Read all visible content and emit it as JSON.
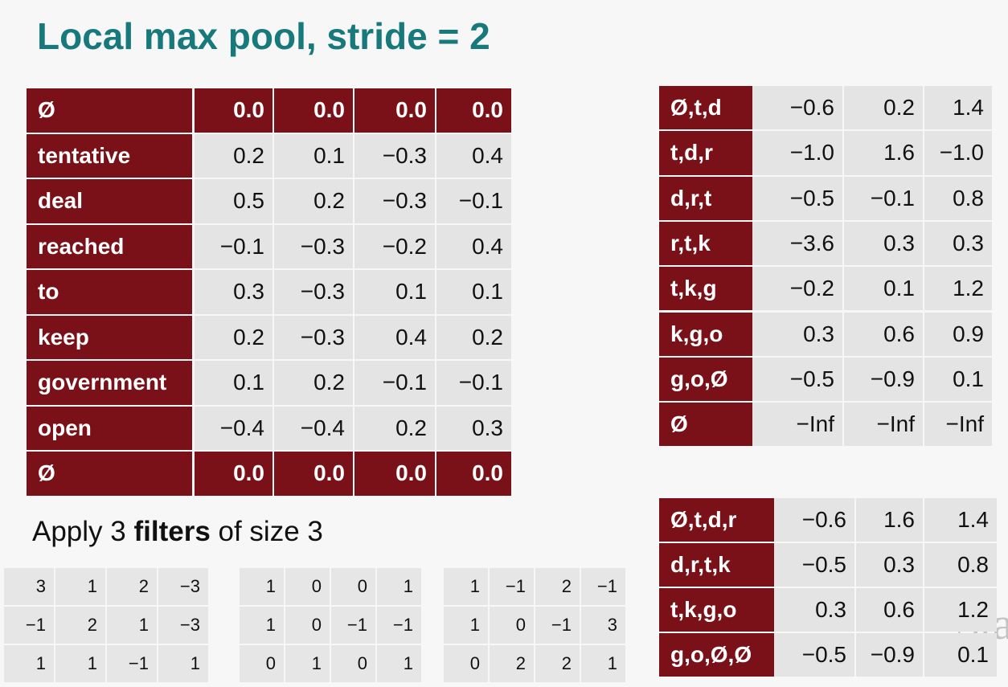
{
  "title": "Local max pool, stride = 2",
  "left_table": {
    "rows": [
      {
        "label": "Ø",
        "values": [
          "0.0",
          "0.0",
          "0.0",
          "0.0"
        ]
      },
      {
        "label": "tentative",
        "values": [
          "0.2",
          "0.1",
          "−0.3",
          "0.4"
        ]
      },
      {
        "label": "deal",
        "values": [
          "0.5",
          "0.2",
          "−0.3",
          "−0.1"
        ]
      },
      {
        "label": "reached",
        "values": [
          "−0.1",
          "−0.3",
          "−0.2",
          "0.4"
        ]
      },
      {
        "label": "to",
        "values": [
          "0.3",
          "−0.3",
          "0.1",
          "0.1"
        ]
      },
      {
        "label": "keep",
        "values": [
          "0.2",
          "−0.3",
          "0.4",
          "0.2"
        ]
      },
      {
        "label": "government",
        "values": [
          "0.1",
          "0.2",
          "−0.1",
          "−0.1"
        ]
      },
      {
        "label": "open",
        "values": [
          "−0.4",
          "−0.4",
          "0.2",
          "0.3"
        ]
      },
      {
        "label": "Ø",
        "values": [
          "0.0",
          "0.0",
          "0.0",
          "0.0"
        ]
      }
    ]
  },
  "caption": {
    "before": "Apply 3 ",
    "bold": "filters",
    "after": " of size 3"
  },
  "filters": [
    [
      [
        "3",
        "1",
        "2",
        "−3"
      ],
      [
        "−1",
        "2",
        "1",
        "−3"
      ],
      [
        "1",
        "1",
        "−1",
        "1"
      ]
    ],
    [
      [
        "1",
        "0",
        "0",
        "1"
      ],
      [
        "1",
        "0",
        "−1",
        "−1"
      ],
      [
        "0",
        "1",
        "0",
        "1"
      ]
    ],
    [
      [
        "1",
        "−1",
        "2",
        "−1"
      ],
      [
        "1",
        "0",
        "−1",
        "3"
      ],
      [
        "0",
        "2",
        "2",
        "1"
      ]
    ]
  ],
  "conv_table": {
    "rows": [
      {
        "label": "Ø,t,d",
        "values": [
          "−0.6",
          "0.2",
          "1.4"
        ]
      },
      {
        "label": "t,d,r",
        "values": [
          "−1.0",
          "1.6",
          "−1.0"
        ]
      },
      {
        "label": "d,r,t",
        "values": [
          "−0.5",
          "−0.1",
          "0.8"
        ]
      },
      {
        "label": "r,t,k",
        "values": [
          "−3.6",
          "0.3",
          "0.3"
        ]
      },
      {
        "label": "t,k,g",
        "values": [
          "−0.2",
          "0.1",
          "1.2"
        ]
      },
      {
        "label": "k,g,o",
        "values": [
          "0.3",
          "0.6",
          "0.9"
        ]
      },
      {
        "label": "g,o,Ø",
        "values": [
          "−0.5",
          "−0.9",
          "0.1"
        ]
      },
      {
        "label": "Ø",
        "values": [
          "−Inf",
          "−Inf",
          "−Inf"
        ]
      }
    ]
  },
  "pool_table": {
    "rows": [
      {
        "label": "Ø,t,d,r",
        "values": [
          "−0.6",
          "1.6",
          "1.4"
        ]
      },
      {
        "label": "d,r,t,k",
        "values": [
          "−0.5",
          "0.3",
          "0.8"
        ]
      },
      {
        "label": "t,k,g,o",
        "values": [
          "0.3",
          "0.6",
          "1.2"
        ]
      },
      {
        "label": "g,o,Ø,Ø",
        "values": [
          "−0.5",
          "−0.9",
          "0.1"
        ]
      }
    ]
  },
  "watermark": "Sta"
}
